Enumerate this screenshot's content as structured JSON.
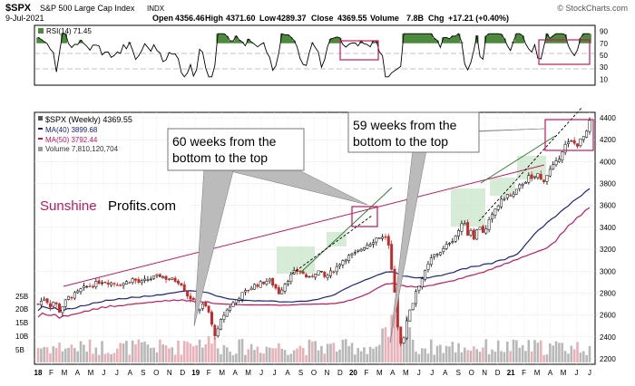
{
  "header": {
    "symbol": "$SPX",
    "description": "S&P 500 Large Cap Index",
    "exchange": "INDX",
    "date": "9-Jul-2021",
    "open_label": "Open",
    "open": "4356.46",
    "high_label": "High",
    "high": "4371.60",
    "low_label": "Low",
    "low": "4289.37",
    "close_label": "Close",
    "close": "4369.55",
    "volume_label": "Volume",
    "volume": "7.8B",
    "chg_label": "Chg",
    "chg": "+17.21 (+0.40%)",
    "source": "© StockCharts.com"
  },
  "rsi_panel": {
    "label": "RSI(14) 71.45",
    "ticks": [
      "90",
      "70",
      "50",
      "30",
      "10"
    ]
  },
  "price_panel": {
    "legend": [
      {
        "text": "$SPX (Weekly) 4369.55",
        "color": "#000000"
      },
      {
        "text": "MA(40) 3899.68",
        "color": "#1a237e"
      },
      {
        "text": "MA(50) 3792.44",
        "color": "#c2185b"
      },
      {
        "text": "Volume 7,810,120,704",
        "color": "#333333"
      }
    ],
    "volume_ticks": [
      "25B",
      "20B",
      "15B",
      "10B",
      "5B"
    ],
    "annotations": [
      {
        "line1": "60 weeks from the",
        "line2": "bottom to the top"
      },
      {
        "line1": "59 weeks from the",
        "line2": "bottom to the top"
      }
    ],
    "watermark_part1": "Sunshine",
    "watermark_part2": "Profits.com"
  },
  "chart_data": {
    "type": "candlestick",
    "x_labels": [
      "18",
      "F",
      "M",
      "A",
      "M",
      "J",
      "J",
      "A",
      "S",
      "O",
      "N",
      "D",
      "19",
      "F",
      "M",
      "A",
      "M",
      "J",
      "J",
      "A",
      "S",
      "O",
      "N",
      "D",
      "20",
      "F",
      "M",
      "A",
      "M",
      "J",
      "J",
      "A",
      "S",
      "O",
      "N",
      "D",
      "21",
      "F",
      "M",
      "A",
      "M",
      "J",
      "J"
    ],
    "y_ticks": [
      4400,
      4200,
      4000,
      3800,
      3600,
      3400,
      3200,
      3000,
      2800,
      2600,
      2400,
      2200
    ],
    "ylim": [
      2150,
      4450
    ],
    "series": [
      {
        "name": "$SPX (Weekly)",
        "points": [
          [
            0,
            2700
          ],
          [
            8,
            2760
          ],
          [
            14,
            2680
          ],
          [
            20,
            2740
          ],
          [
            24,
            2620
          ],
          [
            30,
            2700
          ],
          [
            36,
            2760
          ],
          [
            44,
            2790
          ],
          [
            52,
            2840
          ],
          [
            58,
            2860
          ],
          [
            66,
            2880
          ],
          [
            74,
            2910
          ],
          [
            82,
            2900
          ],
          [
            90,
            2890
          ],
          [
            98,
            2880
          ],
          [
            104,
            2900
          ],
          [
            112,
            2930
          ],
          [
            120,
            2890
          ],
          [
            128,
            2920
          ],
          [
            136,
            2940
          ],
          [
            144,
            2960
          ],
          [
            152,
            2930
          ],
          [
            160,
            2920
          ],
          [
            168,
            2900
          ],
          [
            176,
            2780
          ],
          [
            182,
            2740
          ],
          [
            188,
            2640
          ],
          [
            194,
            2690
          ],
          [
            200,
            2660
          ],
          [
            206,
            2460
          ],
          [
            210,
            2400
          ],
          [
            214,
            2520
          ],
          [
            218,
            2590
          ],
          [
            224,
            2660
          ],
          [
            230,
            2710
          ],
          [
            236,
            2760
          ],
          [
            242,
            2800
          ],
          [
            248,
            2830
          ],
          [
            254,
            2870
          ],
          [
            260,
            2880
          ],
          [
            266,
            2900
          ],
          [
            272,
            2920
          ],
          [
            278,
            2870
          ],
          [
            284,
            2800
          ],
          [
            290,
            2880
          ],
          [
            296,
            2940
          ],
          [
            302,
            2990
          ],
          [
            308,
            3010
          ],
          [
            314,
            2960
          ],
          [
            320,
            2930
          ],
          [
            326,
            2990
          ],
          [
            332,
            3000
          ],
          [
            338,
            2940
          ],
          [
            344,
            2980
          ],
          [
            350,
            3020
          ],
          [
            356,
            3080
          ],
          [
            362,
            3120
          ],
          [
            368,
            3140
          ],
          [
            374,
            3160
          ],
          [
            380,
            3200
          ],
          [
            386,
            3240
          ],
          [
            392,
            3260
          ],
          [
            398,
            3300
          ],
          [
            404,
            3320
          ],
          [
            408,
            3290
          ],
          [
            412,
            3340
          ],
          [
            414,
            3100
          ],
          [
            418,
            2960
          ],
          [
            421,
            2760
          ],
          [
            424,
            2480
          ],
          [
            428,
            2310
          ],
          [
            431,
            2380
          ],
          [
            434,
            2540
          ],
          [
            438,
            2650
          ],
          [
            442,
            2720
          ],
          [
            446,
            2840
          ],
          [
            450,
            2890
          ],
          [
            454,
            2960
          ],
          [
            458,
            3020
          ],
          [
            462,
            3100
          ],
          [
            466,
            3140
          ],
          [
            470,
            3160
          ],
          [
            474,
            3180
          ],
          [
            478,
            3200
          ],
          [
            482,
            3240
          ],
          [
            486,
            3280
          ],
          [
            490,
            3290
          ],
          [
            494,
            3360
          ],
          [
            498,
            3390
          ],
          [
            502,
            3480
          ],
          [
            506,
            3330
          ],
          [
            510,
            3380
          ],
          [
            514,
            3300
          ],
          [
            518,
            3390
          ],
          [
            522,
            3420
          ],
          [
            526,
            3320
          ],
          [
            530,
            3440
          ],
          [
            534,
            3480
          ],
          [
            538,
            3560
          ],
          [
            542,
            3600
          ],
          [
            546,
            3640
          ],
          [
            550,
            3680
          ],
          [
            554,
            3700
          ],
          [
            558,
            3680
          ],
          [
            562,
            3710
          ],
          [
            566,
            3760
          ],
          [
            570,
            3800
          ],
          [
            574,
            3820
          ],
          [
            578,
            3860
          ],
          [
            582,
            3830
          ],
          [
            586,
            3870
          ],
          [
            590,
            3890
          ],
          [
            594,
            3800
          ],
          [
            598,
            3860
          ],
          [
            602,
            3910
          ],
          [
            606,
            3950
          ],
          [
            610,
            3980
          ],
          [
            614,
            4040
          ],
          [
            618,
            4110
          ],
          [
            622,
            4160
          ],
          [
            626,
            4170
          ],
          [
            630,
            4190
          ],
          [
            634,
            4140
          ],
          [
            638,
            4180
          ],
          [
            642,
            4220
          ],
          [
            646,
            4250
          ],
          [
            650,
            4369.55
          ]
        ]
      },
      {
        "name": "MA(40)",
        "value": 3899.68
      },
      {
        "name": "MA(50)",
        "value": 3792.44
      }
    ]
  }
}
